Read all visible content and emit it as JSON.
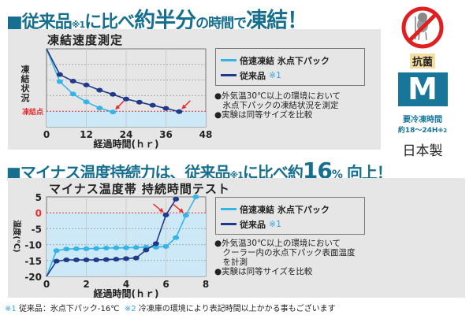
{
  "headline1": {
    "pre": "■従来品",
    "note": "※1",
    "mid": "に比べ",
    "emph": "約半分",
    "post": "の時間で",
    "emph2": "凍結！"
  },
  "headline2": {
    "pre": "■マイナス温度持続力は、従来品",
    "note": "※1",
    "mid": "に比べ約",
    "emph": "16",
    "pct": "%",
    "post": " 向上！"
  },
  "legend": {
    "fast": "倍速凍結  氷点下パック",
    "conv": "従来品",
    "conv_note": "※1"
  },
  "notes1": [
    "●外気温30℃以上の環境において",
    "　氷点下パックの凍結状況を測定",
    "●実験は同等サイズを比較"
  ],
  "notes2": [
    "●外気温30℃以上の環境において",
    "　クーラー内の氷点下パック表面温度",
    "　を計測",
    "●実験は同等サイズを比較"
  ],
  "badge": {
    "antibacterial": "抗菌",
    "size": "M",
    "freeze_label": "要冷凍時間",
    "freeze_time": "約18〜24H",
    "freeze_note": "※2",
    "made_in": "日本製",
    "icon": "no-germs-icon"
  },
  "footnote": {
    "n1": "※1",
    "t1": "従来品：氷点下パック-16℃",
    "n2": "※2",
    "t2": "冷凍庫の環境により表記時間以上かかる事もございます"
  },
  "colors": {
    "fast": "#35b4e8",
    "conv": "#1f3a8a",
    "freeze_line": "#e53030",
    "fill": "#cde9f8",
    "heading": "#176f8f",
    "arrow": "#e53030"
  },
  "chart_data": [
    {
      "type": "line",
      "title": "凍結速度測定",
      "xlabel": "経過時間(ｈｒ)",
      "ylabel": "凍結状況",
      "xlim": [
        0,
        48
      ],
      "xticks": [
        "0",
        "12",
        "24",
        "36",
        "48"
      ],
      "ylim": [
        0,
        5
      ],
      "freeze_label": "凍結点",
      "freeze_level": 1,
      "grid": true,
      "series": [
        {
          "name": "倍速凍結  氷点下パック",
          "x": [
            0,
            4,
            8,
            12,
            16,
            20
          ],
          "y": [
            5,
            2.9,
            2.1,
            1.6,
            1.2,
            0.95
          ]
        },
        {
          "name": "従来品",
          "x": [
            0,
            4,
            8,
            12,
            16,
            20,
            24,
            28,
            32,
            36,
            40
          ],
          "y": [
            5,
            3.35,
            2.93,
            2.68,
            2.35,
            2.08,
            1.78,
            1.58,
            1.38,
            1.18,
            0.97
          ]
        }
      ]
    },
    {
      "type": "line",
      "title": "マイナス温度帯  持続時間テスト",
      "xlabel": "経過時間(ｈｒ)",
      "ylabel": "温度(℃)",
      "xlim": [
        0,
        8
      ],
      "xticks": [
        "0",
        "2",
        "4",
        "6",
        "8"
      ],
      "ylim": [
        -20,
        5
      ],
      "yticks": [
        "5",
        "0",
        "-5",
        "-10",
        "-15",
        "-20"
      ],
      "grid": true,
      "series": [
        {
          "name": "倍速凍結  氷点下パック",
          "x": [
            0,
            0.5,
            1,
            1.5,
            2,
            2.5,
            3,
            3.5,
            4,
            4.5,
            5,
            5.5,
            6,
            6.5,
            7,
            7.5
          ],
          "y": [
            -20,
            -11.9,
            -11.4,
            -11.3,
            -11.3,
            -11.2,
            -11.1,
            -11,
            -11,
            -10.9,
            -10.8,
            -10.8,
            -10.6,
            -7.8,
            -0.8,
            5
          ]
        },
        {
          "name": "従来品",
          "x": [
            0,
            0.5,
            1,
            1.5,
            2,
            2.5,
            3,
            3.5,
            4,
            4.5,
            5,
            5.5,
            6,
            6.5
          ],
          "y": [
            -20,
            -15.2,
            -14.8,
            -14.8,
            -14.8,
            -14.8,
            -14.7,
            -14.6,
            -14.4,
            -14.2,
            -11.7,
            -9.7,
            -0.7,
            4.3
          ]
        }
      ]
    }
  ]
}
